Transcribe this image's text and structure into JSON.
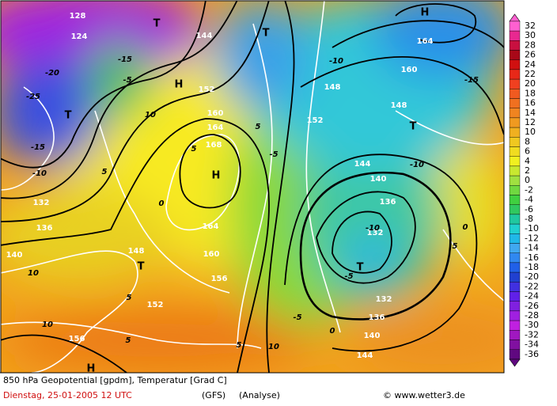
{
  "map": {
    "labels": [
      "H",
      "T",
      "T",
      "H",
      "T",
      "H",
      "T",
      "T",
      "T",
      "H",
      "128",
      "124",
      "144",
      "152",
      "160",
      "164",
      "168",
      "164",
      "160",
      "156",
      "152",
      "148",
      "140",
      "136",
      "132",
      "156",
      "148",
      "152",
      "160",
      "164",
      "148",
      "144",
      "140",
      "136",
      "132",
      "132",
      "136",
      "140",
      "144",
      "-10",
      "-15",
      "-10",
      "-5",
      "0",
      "5",
      "5",
      "5",
      "10",
      "10",
      "5",
      "5",
      "10",
      "-5",
      "0",
      "-5",
      "-10",
      "-15",
      "-20",
      "-25",
      "-15",
      "-10",
      "-5",
      "10",
      "5",
      "0",
      "5"
    ]
  },
  "colorbar": {
    "levels": [
      32,
      30,
      28,
      26,
      24,
      22,
      20,
      18,
      16,
      14,
      12,
      10,
      8,
      6,
      4,
      2,
      0,
      -2,
      -4,
      -6,
      -8,
      -10,
      -12,
      -14,
      -16,
      -18,
      -20,
      -22,
      -24,
      -26,
      -28,
      -30,
      -32,
      -34,
      -36
    ],
    "colors": [
      "#ff60d0",
      "#e82890",
      "#c81040",
      "#a80818",
      "#d01010",
      "#e82818",
      "#f04020",
      "#f05a20",
      "#f07020",
      "#f08420",
      "#f09a20",
      "#f0b020",
      "#f0c820",
      "#f0dc20",
      "#f0f020",
      "#c8e830",
      "#a0e040",
      "#70d840",
      "#40d040",
      "#30c860",
      "#20c8a0",
      "#20d0d0",
      "#20b8e8",
      "#40a8f0",
      "#3088f0",
      "#2060e8",
      "#2040d0",
      "#4030e0",
      "#6020e8",
      "#8020e0",
      "#a020e0",
      "#c020e0",
      "#a018c0",
      "#8010a0",
      "#600880"
    ]
  },
  "footer": {
    "title": "850 hPa Geopotential [gpdm], Temperatur [Grad C]",
    "date": "Dienstag, 25-01-2005  12 UTC",
    "model": "(GFS)",
    "run": "(Analyse)",
    "credit": "© www.wetter3.de"
  }
}
